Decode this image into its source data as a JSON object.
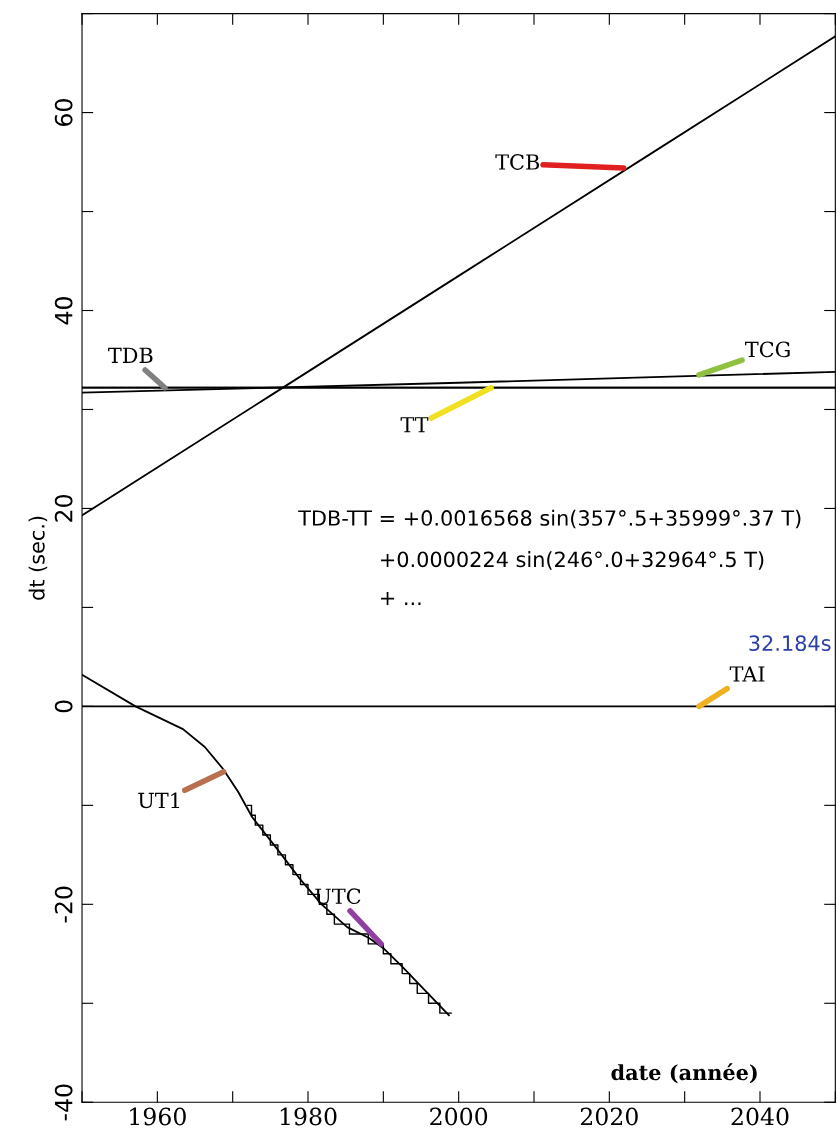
{
  "chart_data": {
    "type": "line",
    "xlabel": "date (année)",
    "ylabel": "dt (sec.)",
    "xlim": [
      1950,
      2050
    ],
    "ylim": [
      -40,
      70
    ],
    "xticks": [
      {
        "value": 1950,
        "label": null
      },
      1960,
      {
        "value": 1970,
        "label": null
      },
      1980,
      {
        "value": 1990,
        "label": null
      },
      2000,
      {
        "value": 2010,
        "label": null
      },
      2020,
      {
        "value": 2030,
        "label": null
      },
      2040,
      {
        "value": 2050,
        "label": null
      }
    ],
    "yticks": [
      -40,
      {
        "value": -30,
        "label": null
      },
      -20,
      {
        "value": -10,
        "label": null
      },
      0,
      {
        "value": 10,
        "label": null
      },
      20,
      {
        "value": 30,
        "label": null
      },
      40,
      {
        "value": 50,
        "label": null
      },
      60,
      {
        "value": 70,
        "label": null
      }
    ],
    "grid": false,
    "legend": false,
    "marker": "none",
    "line_style": "solid",
    "series": [
      {
        "color": "#000000",
        "x": [
          1950,
          1975,
          2000,
          2025,
          2050
        ],
        "values": [
          19.3,
          31.4,
          43.5,
          55.6,
          67.7
        ]
      },
      {
        "color": "#000000",
        "x": [
          1950,
          2000,
          2050
        ],
        "values": [
          32.2,
          32.2,
          32.2
        ]
      },
      {
        "color": "#000000",
        "x": [
          1950,
          2000,
          2050
        ],
        "values": [
          31.7,
          32.7,
          33.8
        ]
      },
      {
        "color": "#000000",
        "x": [
          1950,
          2000,
          2050
        ],
        "values": [
          32.2,
          32.2,
          32.2
        ]
      },
      {
        "color": "#000000",
        "x": [
          1950,
          2050
        ],
        "values": [
          0,
          0
        ]
      },
      {
        "color": "#000000",
        "x": [
          1950,
          1957.1,
          1963.4,
          1966.3,
          1968.7,
          1970.7,
          1972.6,
          1976,
          1978.9,
          1981.8,
          1985.2,
          1988.1,
          1990.1,
          1992.5,
          1998.7
        ],
        "values": [
          3.2,
          0,
          -2.3,
          -4.1,
          -6.3,
          -8.6,
          -11.2,
          -14.5,
          -17.4,
          -20.0,
          -22.3,
          -23.4,
          -24.5,
          -26.3,
          -31.2
        ]
      },
      {
        "type": "step",
        "color": "#000000",
        "x": [
          1972,
          1972.5,
          1973,
          1974,
          1975,
          1976,
          1977,
          1978,
          1979,
          1980,
          1981.5,
          1982.5,
          1983.5,
          1985.5,
          1988,
          1990,
          1991,
          1992.5,
          1993.5,
          1994.5,
          1996,
          1997.5,
          1999
        ],
        "values": [
          -10,
          -11,
          -12,
          -13,
          -14,
          -15,
          -16,
          -17,
          -18,
          -19,
          -20,
          -21,
          -22,
          -23,
          -24,
          -25,
          -26,
          -27,
          -28,
          -29,
          -30,
          -31,
          -31
        ]
      }
    ],
    "annotations": [
      {
        "text": "TCB",
        "x": 2021.9,
        "y": 54.4
      },
      {
        "text": "TDB",
        "x": 1961,
        "y": 32.2
      },
      {
        "text": "TCG",
        "x": 2031.9,
        "y": 33.5
      },
      {
        "text": "TT",
        "x": 2004.3,
        "y": 32.2
      },
      {
        "text": "TAI",
        "x": 2031.9,
        "y": 0
      },
      {
        "text": "UT1",
        "x": 1968.8,
        "y": -6.6
      },
      {
        "text": "UTC",
        "x": 1989.7,
        "y": -24.0
      },
      "TDB-TT = +0.0016568 sin(357°.5+35999°.37 T)",
      "+0.0000224 sin(246°.0+32964°.5 T)",
      "+ ...",
      "32.184s"
    ]
  }
}
